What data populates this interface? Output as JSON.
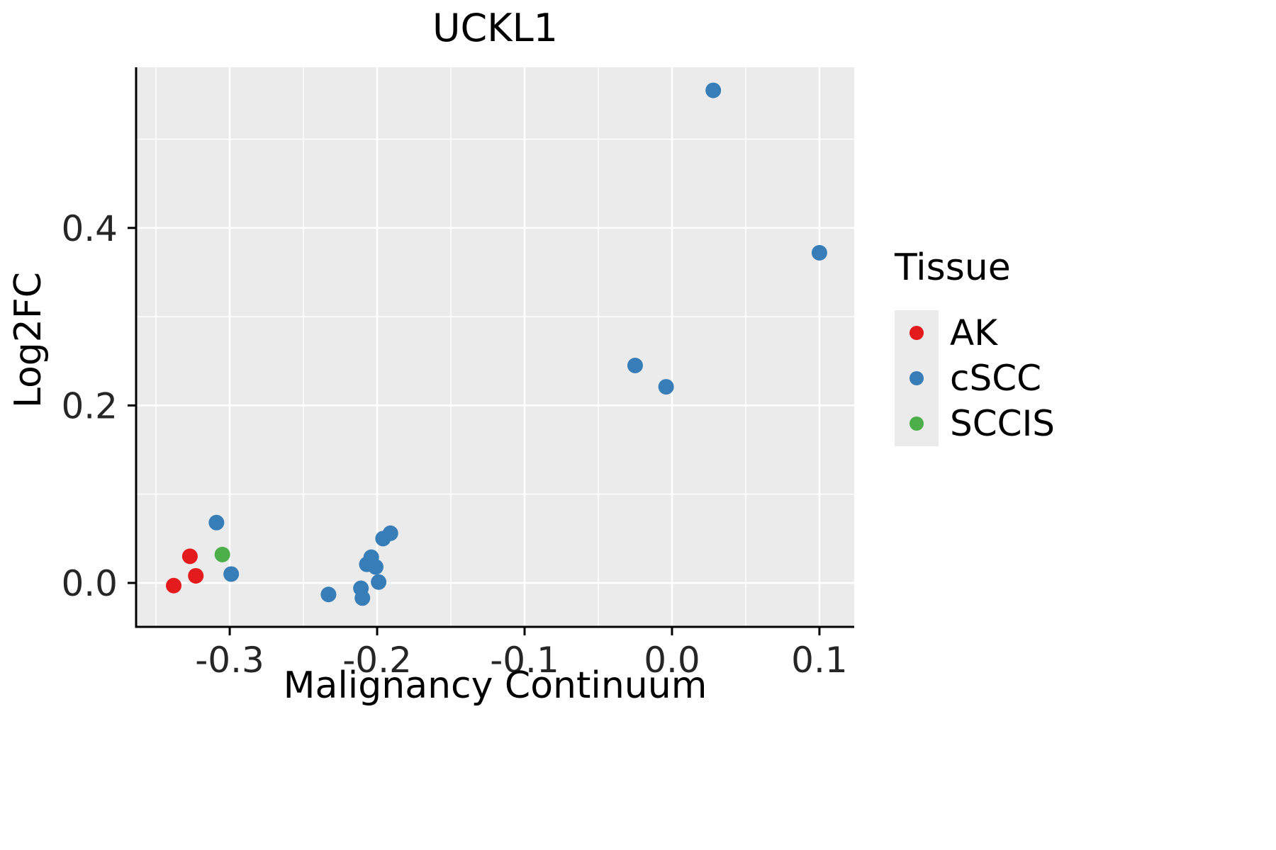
{
  "chart_data": {
    "type": "scatter",
    "title": "UCKL1",
    "xlabel": "Malignancy Continuum",
    "ylabel": "Log2FC",
    "legend_title": "Tissue",
    "legend_position": "right",
    "grid": true,
    "panel_background": "#EBEBEB",
    "grid_color": "#FFFFFF",
    "axis_color": "#000000",
    "tick_label_color": "#262626",
    "xlim": [
      -0.3635,
      0.1236
    ],
    "ylim": [
      -0.0495,
      0.581
    ],
    "x_major_ticks": [
      -0.3,
      -0.2,
      -0.1,
      0.0,
      0.1
    ],
    "x_tick_labels": [
      "-0.3",
      "-0.2",
      "-0.1",
      "0.0",
      "0.1"
    ],
    "x_minor_ticks": [
      -0.35,
      -0.25,
      -0.15,
      -0.05,
      0.05
    ],
    "y_major_ticks": [
      0.0,
      0.2,
      0.4
    ],
    "y_tick_labels": [
      "0.0",
      "0.2",
      "0.4"
    ],
    "y_minor_ticks": [
      0.1,
      0.3,
      0.5
    ],
    "series": [
      {
        "name": "AK",
        "color": "#E41A1C",
        "points": [
          [
            -0.338,
            -0.003
          ],
          [
            -0.327,
            0.03
          ],
          [
            -0.323,
            0.008
          ]
        ]
      },
      {
        "name": "cSCC",
        "color": "#377EB8",
        "points": [
          [
            -0.309,
            0.068
          ],
          [
            -0.299,
            0.01
          ],
          [
            -0.233,
            -0.013
          ],
          [
            -0.211,
            -0.006
          ],
          [
            -0.21,
            -0.017
          ],
          [
            -0.207,
            0.021
          ],
          [
            -0.204,
            0.029
          ],
          [
            -0.201,
            0.018
          ],
          [
            -0.199,
            0.001
          ],
          [
            -0.196,
            0.05
          ],
          [
            -0.191,
            0.056
          ],
          [
            -0.025,
            0.245
          ],
          [
            -0.004,
            0.221
          ],
          [
            0.028,
            0.555
          ],
          [
            0.1,
            0.372
          ]
        ]
      },
      {
        "name": "SCCIS",
        "color": "#4DAF4A",
        "points": [
          [
            -0.305,
            0.032
          ]
        ]
      }
    ]
  }
}
